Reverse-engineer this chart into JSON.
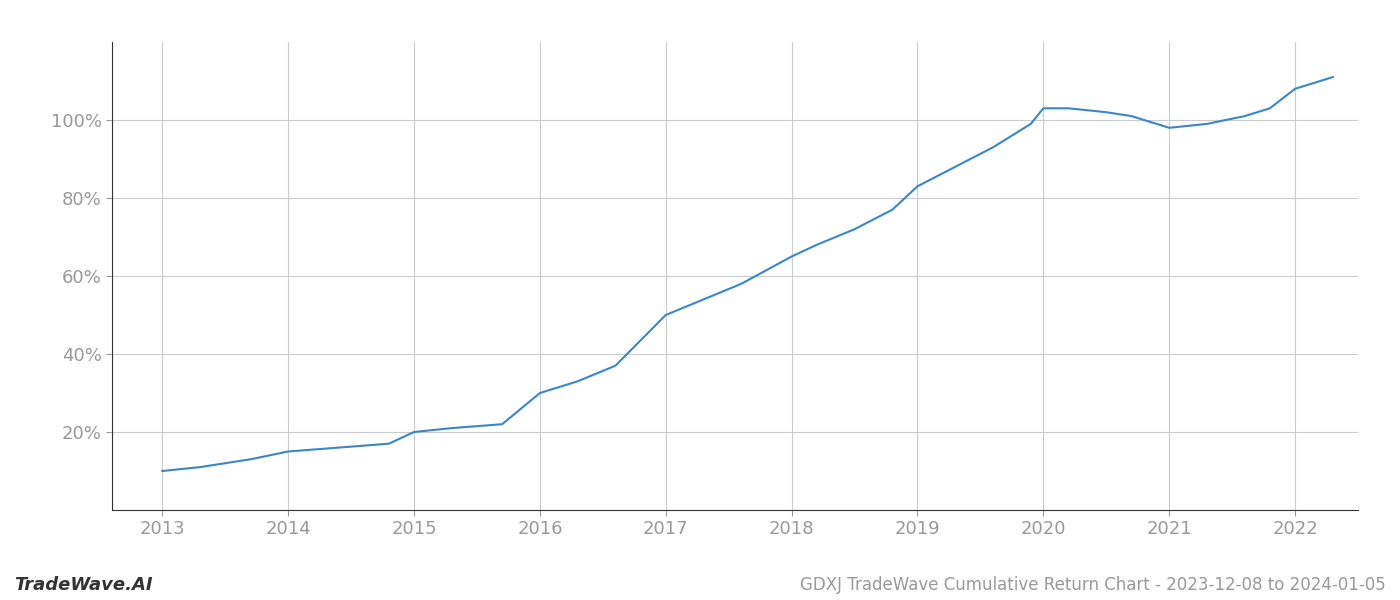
{
  "line_color": "#3a87c8",
  "line_width": 1.5,
  "background_color": "#ffffff",
  "grid_color": "#cccccc",
  "title": "GDXJ TradeWave Cumulative Return Chart - 2023-12-08 to 2024-01-05",
  "watermark": "TradeWave.AI",
  "yticks": [
    20,
    40,
    60,
    80,
    100
  ],
  "ylim": [
    0,
    120
  ],
  "xlim": [
    2012.6,
    2022.5
  ],
  "x_years": [
    2013,
    2014,
    2015,
    2016,
    2017,
    2018,
    2019,
    2020,
    2021,
    2022
  ],
  "tick_color": "#999999",
  "spine_color": "#333333",
  "tick_fontsize": 13,
  "title_fontsize": 12,
  "watermark_fontsize": 13,
  "x_pts": [
    2013,
    2013.3,
    2013.7,
    2014,
    2014.4,
    2014.8,
    2015,
    2015.3,
    2015.7,
    2016,
    2016.3,
    2016.6,
    2017,
    2017.3,
    2017.6,
    2018,
    2018.2,
    2018.5,
    2018.8,
    2019,
    2019.3,
    2019.6,
    2019.9,
    2020,
    2020.2,
    2020.5,
    2020.7,
    2021,
    2021.3,
    2021.6,
    2021.8,
    2022,
    2022.3
  ],
  "y_pts": [
    10,
    11,
    13,
    15,
    16,
    17,
    20,
    21,
    22,
    30,
    33,
    37,
    50,
    54,
    58,
    65,
    68,
    72,
    77,
    83,
    88,
    93,
    99,
    103,
    103,
    102,
    101,
    98,
    99,
    101,
    103,
    108,
    111
  ]
}
